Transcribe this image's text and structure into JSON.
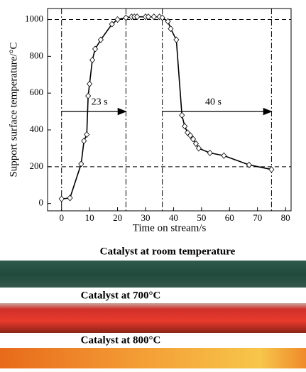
{
  "chart_data": {
    "type": "line",
    "x_label": "Time on stream/s",
    "y_label": "Support surface temperature/°C",
    "x": [
      0,
      3,
      7,
      8,
      9,
      9.5,
      10,
      11,
      12,
      14,
      18,
      20,
      23,
      25,
      26,
      27,
      30,
      31,
      33,
      35,
      36,
      38,
      39,
      41,
      43,
      44,
      45,
      46,
      47,
      48,
      49,
      53,
      58,
      67,
      75
    ],
    "series": [
      {
        "color": "#000000",
        "values": [
          25,
          30,
          215,
          340,
          375,
          585,
          650,
          780,
          840,
          890,
          975,
          1000,
          1010,
          1015,
          1015,
          1015,
          1015,
          1015,
          1015,
          1015,
          1010,
          990,
          950,
          890,
          480,
          420,
          385,
          370,
          350,
          325,
          300,
          275,
          260,
          210,
          185
        ]
      }
    ],
    "xlim": [
      -5,
      82
    ],
    "ylim": [
      -40,
      1060
    ],
    "xticks": [
      0,
      10,
      20,
      30,
      40,
      50,
      60,
      70,
      80
    ],
    "yticks": [
      0,
      200,
      400,
      600,
      800,
      1000
    ],
    "hlines": [
      1000,
      200
    ],
    "vlines": [
      0,
      23,
      36,
      75
    ],
    "annotations": [
      {
        "text": "23 s",
        "x": [
          0,
          23
        ],
        "y": 500
      },
      {
        "text": "40 s",
        "x": [
          36,
          75
        ],
        "y": 500
      }
    ]
  },
  "photos": [
    {
      "caption": "Catalyst at room temperature"
    },
    {
      "caption": "Catalyst at 700°C"
    },
    {
      "caption": "Catalyst at 800°C"
    }
  ]
}
